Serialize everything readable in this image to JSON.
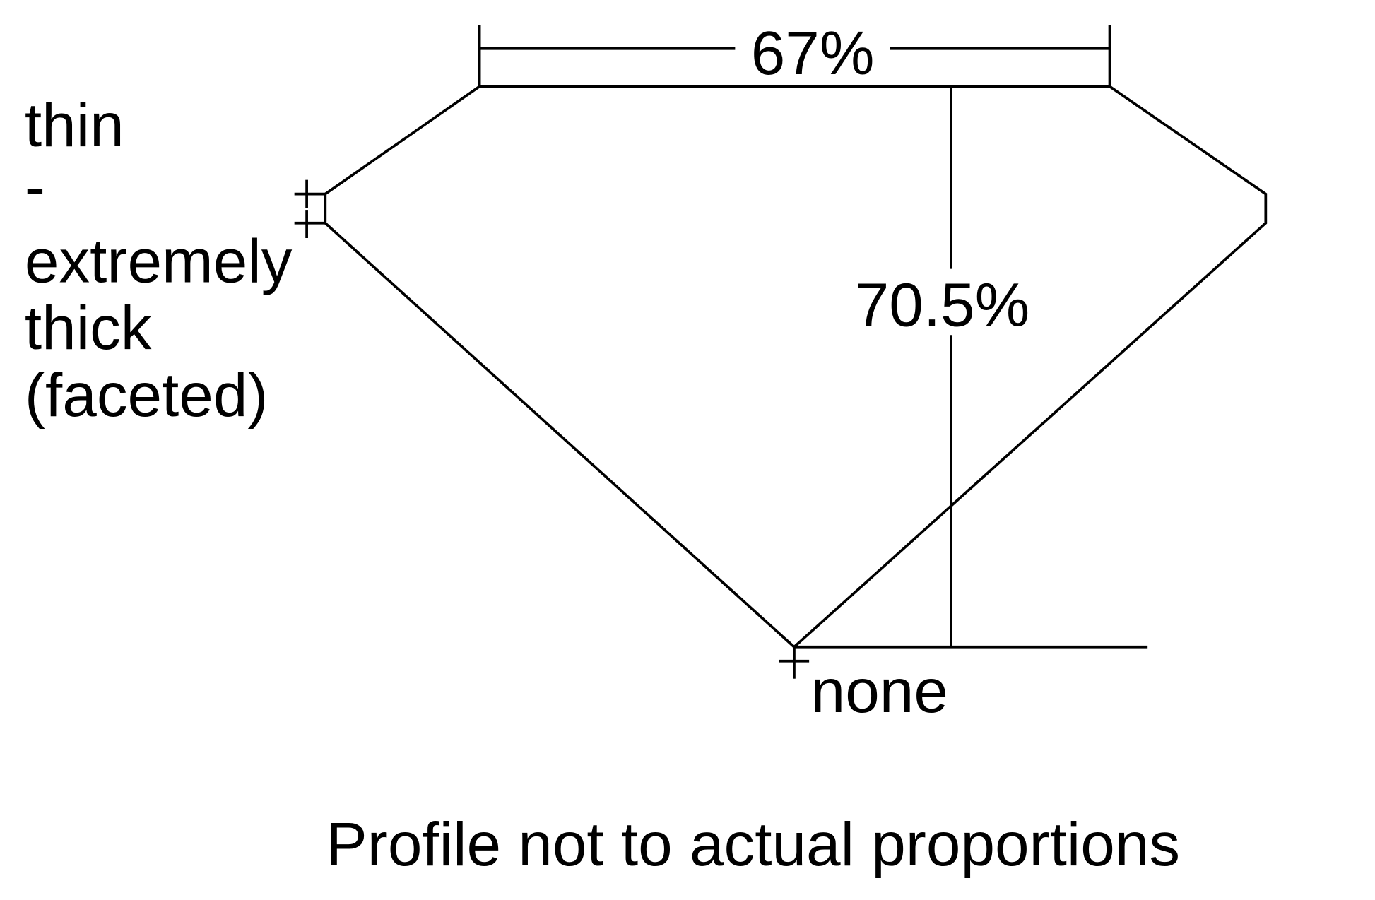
{
  "diagram": {
    "table_width_label": "67%",
    "total_depth_label": "70.5%",
    "girdle_label_lines": [
      "thin",
      "-",
      "extremely",
      "thick",
      "(faceted)"
    ],
    "culet_label": "none",
    "caption": "Profile not to actual proportions",
    "line_color": "#000000"
  }
}
